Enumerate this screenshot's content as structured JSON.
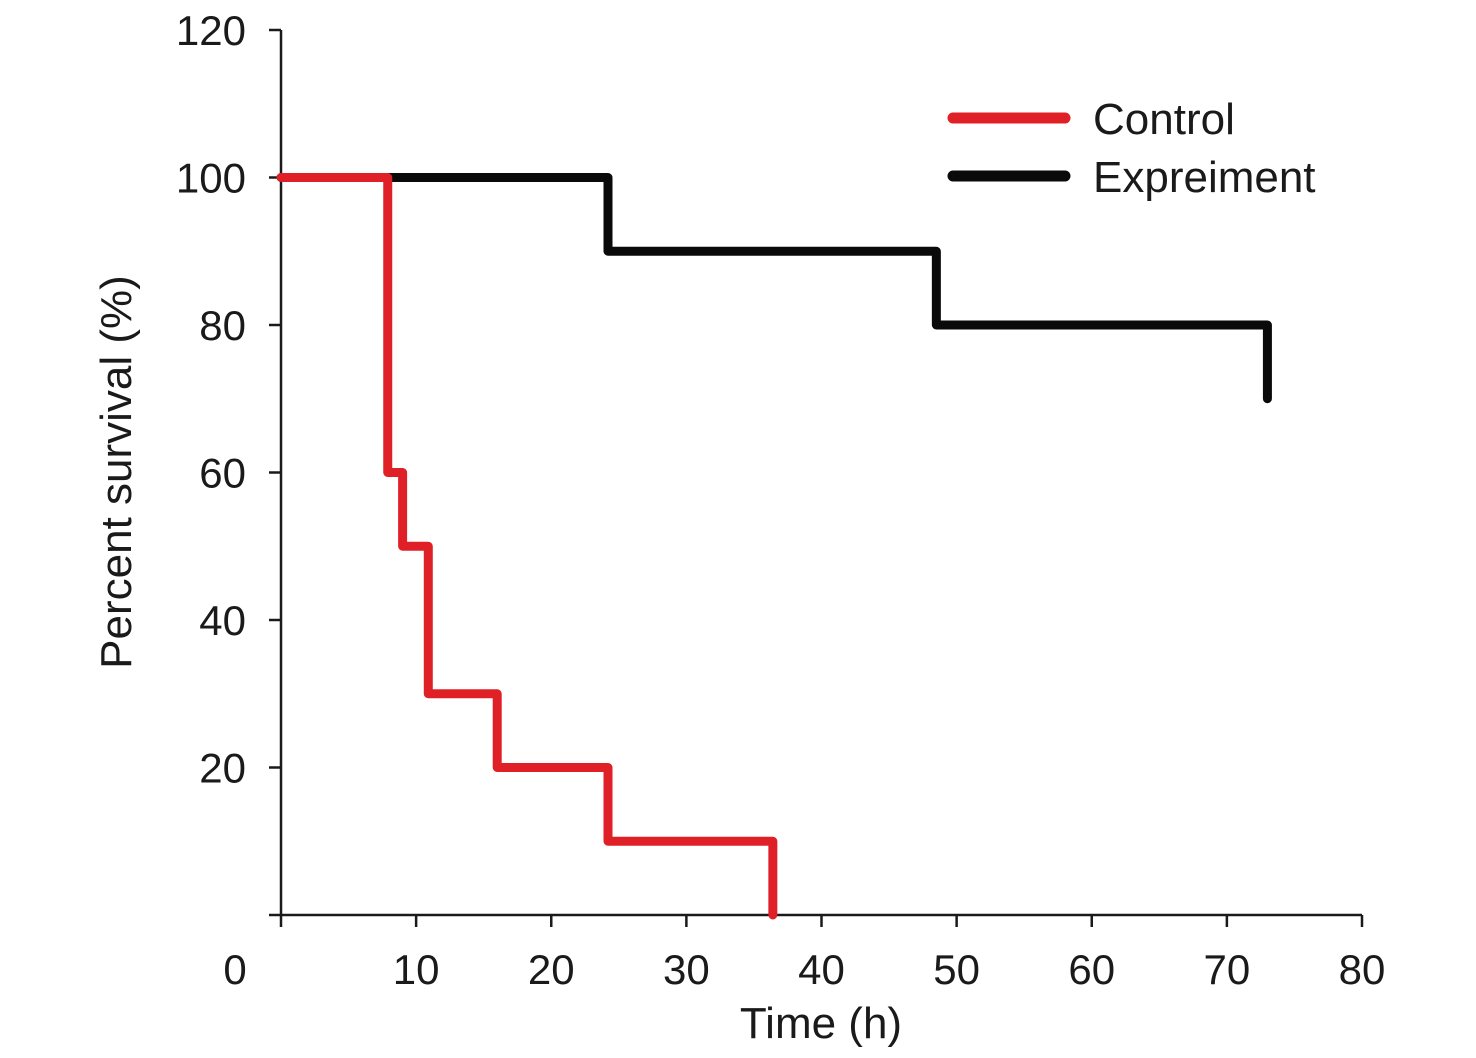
{
  "chart_data": {
    "type": "line",
    "step": true,
    "xlabel": "Time (h)",
    "ylabel": "Percent survival (%)",
    "xlim": [
      0,
      80
    ],
    "ylim": [
      0,
      120
    ],
    "xticks": [
      "0",
      "10",
      "20",
      "30",
      "40",
      "50",
      "60",
      "70",
      "80"
    ],
    "yticks": [
      "20",
      "40",
      "60",
      "80",
      "100",
      "120"
    ],
    "grid": false,
    "legend": "top-right",
    "series": [
      {
        "name": "Control",
        "color": "#e02027",
        "x": [
          0,
          7.9,
          9,
          10.9,
          16,
          24.2,
          36.4
        ],
        "y": [
          100,
          60,
          50,
          30,
          20,
          10,
          0
        ]
      },
      {
        "name": "Expreiment",
        "color": "#0a0a0a",
        "x": [
          0,
          24.2,
          48.5,
          73
        ],
        "y": [
          100,
          90,
          80,
          70
        ]
      }
    ]
  }
}
